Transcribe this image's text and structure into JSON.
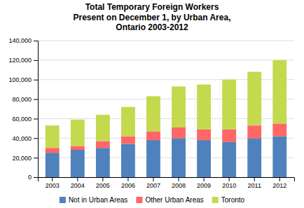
{
  "chart_data": {
    "type": "bar",
    "title": "Total Temporary Foreign Workers\nPresent on December 1, by Urban Area,\nOntario 2003-2012",
    "categories": [
      "2003",
      "2004",
      "2005",
      "2006",
      "2007",
      "2008",
      "2009",
      "2010",
      "2011",
      "2012"
    ],
    "series": [
      {
        "name": "Not in Urban Areas",
        "color": "#4F81BD",
        "values": [
          25000,
          28000,
          30000,
          34000,
          38000,
          40000,
          38000,
          36000,
          40000,
          42000
        ]
      },
      {
        "name": "Other Urban Areas",
        "color": "#FF6666",
        "values": [
          5000,
          4000,
          7000,
          8000,
          9000,
          11000,
          11000,
          13000,
          13000,
          13000
        ]
      },
      {
        "name": "Toronto",
        "color": "#C4D94E",
        "values": [
          23000,
          27000,
          27000,
          30000,
          36000,
          42000,
          46000,
          51000,
          55000,
          65000
        ]
      }
    ],
    "stacked": true,
    "ylim": [
      0,
      140000
    ],
    "yticks": [
      0,
      {
        "value": 20000,
        "label": "20,000"
      },
      {
        "value": 40000,
        "label": "40,000"
      },
      {
        "value": 60000,
        "label": "60,000"
      },
      {
        "value": 80000,
        "label": "80,000"
      },
      {
        "value": 100000,
        "label": "100,000"
      },
      {
        "value": 120000,
        "label": "120,000"
      },
      {
        "value": 140000,
        "label": "140,000"
      }
    ],
    "grid": true,
    "legend": "bottom"
  }
}
